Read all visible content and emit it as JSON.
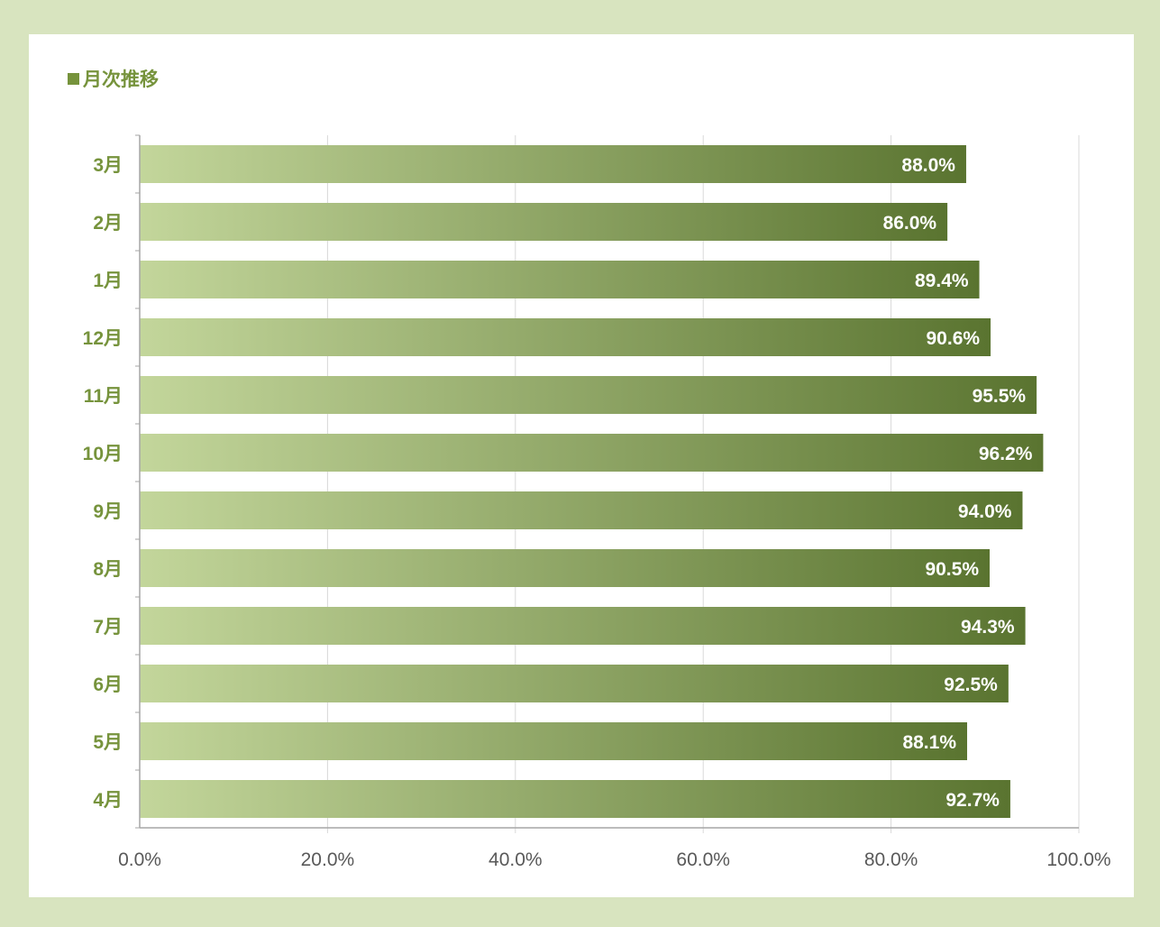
{
  "title": "■月次推移",
  "title_text": "月次推移",
  "colors": {
    "frame": "#d8e4bf",
    "accent": "#76933c",
    "bar_start": "#c3d69b",
    "bar_end": "#5a7430",
    "grid": "#d9d9d9",
    "axis": "#a6a6a6"
  },
  "chart_data": {
    "type": "bar",
    "orientation": "horizontal",
    "title": "月次推移",
    "categories": [
      "3月",
      "2月",
      "1月",
      "12月",
      "11月",
      "10月",
      "9月",
      "8月",
      "7月",
      "6月",
      "5月",
      "4月"
    ],
    "values": [
      88.0,
      86.0,
      89.4,
      90.6,
      95.5,
      96.2,
      94.0,
      90.5,
      94.3,
      92.5,
      88.1,
      92.7
    ],
    "value_labels": [
      "88.0%",
      "86.0%",
      "89.4%",
      "90.6%",
      "95.5%",
      "96.2%",
      "94.0%",
      "90.5%",
      "94.3%",
      "92.5%",
      "88.1%",
      "92.7%"
    ],
    "xlim": [
      0,
      100
    ],
    "x_ticks": [
      0,
      20,
      40,
      60,
      80,
      100
    ],
    "x_tick_labels": [
      "0.0%",
      "20.0%",
      "40.0%",
      "60.0%",
      "80.0%",
      "100.0%"
    ],
    "xlabel": "",
    "ylabel": "",
    "grid": true,
    "legend": "none"
  }
}
